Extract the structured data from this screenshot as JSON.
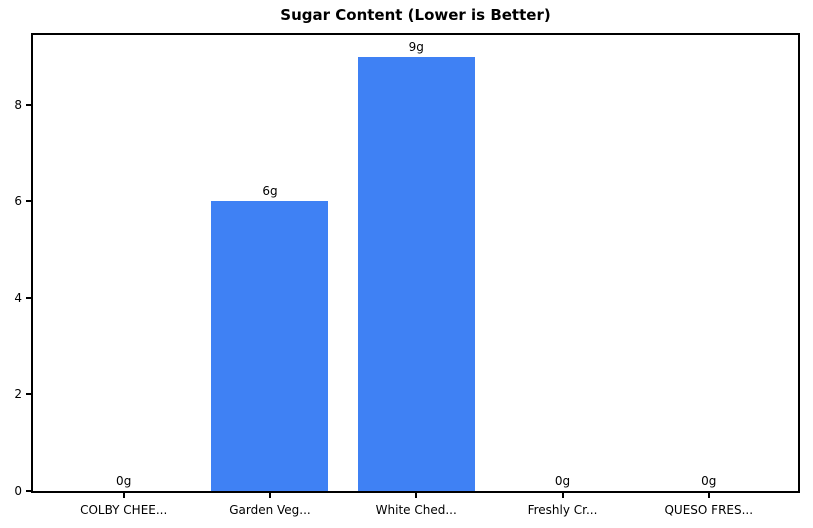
{
  "chart_data": {
    "type": "bar",
    "title": "Sugar Content (Lower is Better)",
    "categories": [
      "COLBY CHEE...",
      "Garden Veg...",
      "White Ched...",
      "Freshly Cr...",
      "QUESO FRES..."
    ],
    "values": [
      0,
      6,
      9,
      0,
      0
    ],
    "value_labels": [
      "0g",
      "6g",
      "9g",
      "0g",
      "0g"
    ],
    "xlabel": "",
    "ylabel": "",
    "yticks": [
      0,
      2,
      4,
      6,
      8
    ],
    "ytick_labels": [
      "0",
      "2",
      "4",
      "6",
      "8"
    ],
    "ylim": [
      0,
      9.45
    ],
    "xlim": [
      -0.62,
      4.61
    ],
    "bar_width": 0.8,
    "bar_color": "#3F81F4",
    "spine_color": "#000000",
    "text_color": "#000000",
    "background_color": "#ffffff",
    "grid": false,
    "legend": null
  }
}
